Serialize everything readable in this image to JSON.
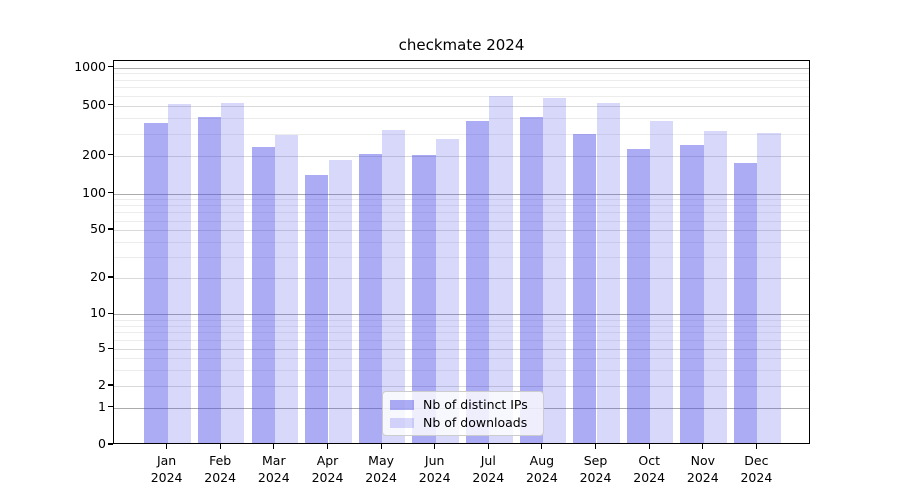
{
  "title": "checkmate 2024",
  "chart_data": {
    "type": "bar",
    "title": "checkmate 2024",
    "categories": [
      "Jan",
      "Feb",
      "Mar",
      "Apr",
      "May",
      "Jun",
      "Jul",
      "Aug",
      "Sep",
      "Oct",
      "Nov",
      "Dec"
    ],
    "x_sublabel": "2024",
    "series": [
      {
        "name": "Nb of distinct IPs",
        "color": "rgba(70,70,230,0.45)",
        "values": [
          350,
          390,
          225,
          135,
          200,
          195,
          365,
          390,
          285,
          220,
          235,
          170
        ]
      },
      {
        "name": "Nb of downloads",
        "color": "rgba(70,70,230,0.21)",
        "values": [
          500,
          505,
          280,
          180,
          310,
          260,
          570,
          550,
          505,
          365,
          305,
          290
        ]
      }
    ],
    "xlabel": "",
    "ylabel": "",
    "yscale": "symlog",
    "ylim": [
      0,
      1150
    ],
    "y_ticks": [
      0,
      1,
      2,
      5,
      10,
      20,
      50,
      100,
      200,
      500,
      1000
    ],
    "grid": "on",
    "legend_position": "lower center",
    "colors": {
      "bar_ips": "#aaaaf2",
      "bar_downloads": "#d9d9f9",
      "grid_major": "#ababab",
      "grid_minor": "#ececec",
      "spine": "#000000",
      "background": "#ffffff"
    }
  }
}
